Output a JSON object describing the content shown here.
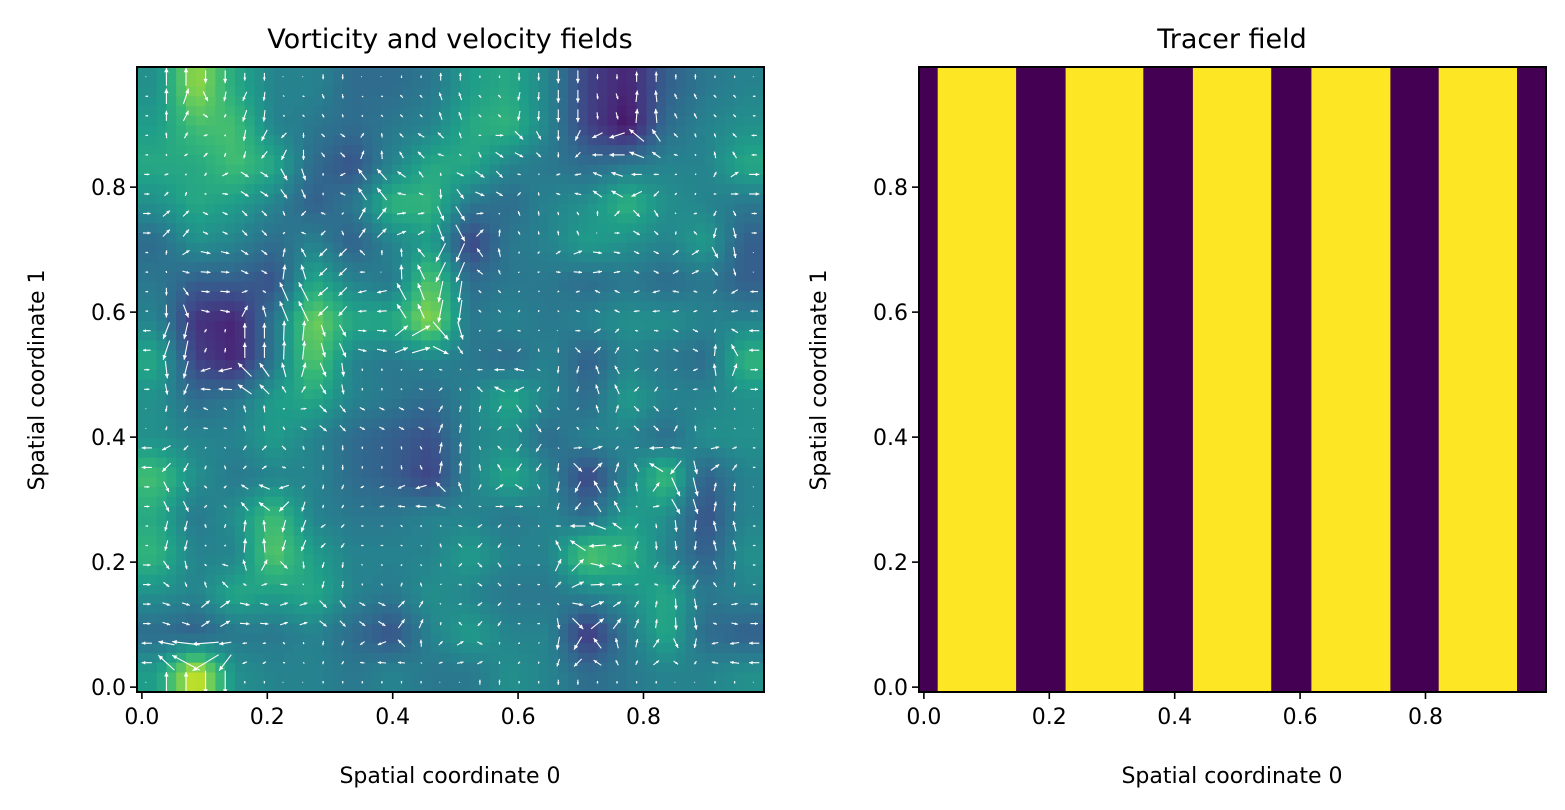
{
  "chart_data": [
    {
      "type": "heatmap",
      "title": "Vorticity and velocity fields",
      "xlabel": "Spatial coordinate 0",
      "ylabel": "Spatial coordinate 1",
      "xlim": [
        -0.0078,
        0.9922
      ],
      "ylim": [
        -0.0078,
        0.9922
      ],
      "xticks": [
        "0.0",
        "0.2",
        "0.4",
        "0.6",
        "0.8"
      ],
      "yticks": [
        "0.0",
        "0.2",
        "0.4",
        "0.6",
        "0.8"
      ],
      "colormap": "viridis",
      "overlay": "quiver",
      "overlay_color": "#ffffff",
      "grid_note_rows_top_to_bottom": true,
      "vorticity_grid": [
        [
          0.5,
          0.85,
          0.6,
          0.45,
          0.45,
          0.35,
          0.35,
          0.4,
          0.55,
          0.6,
          0.45,
          0.2,
          0.1,
          0.3,
          0.4,
          0.45
        ],
        [
          0.55,
          0.7,
          0.7,
          0.45,
          0.4,
          0.35,
          0.4,
          0.45,
          0.6,
          0.65,
          0.45,
          0.2,
          0.05,
          0.35,
          0.45,
          0.5
        ],
        [
          0.6,
          0.6,
          0.7,
          0.6,
          0.35,
          0.25,
          0.45,
          0.6,
          0.6,
          0.45,
          0.4,
          0.35,
          0.4,
          0.45,
          0.45,
          0.6
        ],
        [
          0.5,
          0.6,
          0.55,
          0.45,
          0.3,
          0.4,
          0.65,
          0.65,
          0.4,
          0.35,
          0.45,
          0.5,
          0.65,
          0.5,
          0.45,
          0.4
        ],
        [
          0.35,
          0.5,
          0.45,
          0.35,
          0.45,
          0.3,
          0.45,
          0.55,
          0.2,
          0.4,
          0.45,
          0.55,
          0.5,
          0.45,
          0.55,
          0.3
        ],
        [
          0.4,
          0.3,
          0.3,
          0.25,
          0.6,
          0.45,
          0.4,
          0.75,
          0.35,
          0.4,
          0.4,
          0.35,
          0.4,
          0.35,
          0.4,
          0.3
        ],
        [
          0.45,
          0.15,
          0.1,
          0.4,
          0.8,
          0.6,
          0.6,
          0.85,
          0.4,
          0.45,
          0.4,
          0.45,
          0.5,
          0.5,
          0.45,
          0.45
        ],
        [
          0.6,
          0.2,
          0.1,
          0.4,
          0.75,
          0.45,
          0.4,
          0.45,
          0.4,
          0.35,
          0.45,
          0.3,
          0.45,
          0.4,
          0.35,
          0.65
        ],
        [
          0.5,
          0.35,
          0.4,
          0.55,
          0.6,
          0.45,
          0.4,
          0.35,
          0.45,
          0.6,
          0.45,
          0.35,
          0.55,
          0.45,
          0.45,
          0.5
        ],
        [
          0.5,
          0.45,
          0.45,
          0.55,
          0.45,
          0.35,
          0.3,
          0.25,
          0.45,
          0.5,
          0.35,
          0.45,
          0.45,
          0.35,
          0.5,
          0.5
        ],
        [
          0.7,
          0.5,
          0.4,
          0.45,
          0.45,
          0.35,
          0.3,
          0.2,
          0.45,
          0.6,
          0.45,
          0.2,
          0.45,
          0.7,
          0.3,
          0.45
        ],
        [
          0.6,
          0.4,
          0.5,
          0.7,
          0.45,
          0.4,
          0.4,
          0.45,
          0.45,
          0.4,
          0.45,
          0.35,
          0.55,
          0.5,
          0.25,
          0.45
        ],
        [
          0.65,
          0.45,
          0.45,
          0.75,
          0.55,
          0.45,
          0.45,
          0.45,
          0.55,
          0.45,
          0.45,
          0.75,
          0.65,
          0.45,
          0.3,
          0.5
        ],
        [
          0.5,
          0.45,
          0.6,
          0.55,
          0.6,
          0.45,
          0.4,
          0.5,
          0.45,
          0.4,
          0.4,
          0.45,
          0.5,
          0.6,
          0.4,
          0.45
        ],
        [
          0.35,
          0.3,
          0.4,
          0.4,
          0.45,
          0.35,
          0.25,
          0.45,
          0.55,
          0.45,
          0.45,
          0.15,
          0.4,
          0.6,
          0.35,
          0.3
        ],
        [
          0.55,
          0.95,
          0.5,
          0.45,
          0.45,
          0.4,
          0.45,
          0.4,
          0.4,
          0.5,
          0.45,
          0.35,
          0.4,
          0.45,
          0.45,
          0.5
        ]
      ]
    },
    {
      "type": "heatmap",
      "title": "Tracer field",
      "xlabel": "Spatial coordinate 0",
      "ylabel": "Spatial coordinate 1",
      "xlim": [
        -0.0078,
        0.9922
      ],
      "ylim": [
        -0.0078,
        0.9922
      ],
      "xticks": [
        "0.0",
        "0.2",
        "0.4",
        "0.6",
        "0.8"
      ],
      "yticks": [
        "0.0",
        "0.2",
        "0.4",
        "0.6",
        "0.8"
      ],
      "colormap": "viridis",
      "low_color": "#440154",
      "high_color": "#fde725",
      "stripes": [
        {
          "x0": -0.0078,
          "x1": 0.022,
          "value": 0
        },
        {
          "x0": 0.022,
          "x1": 0.147,
          "value": 1
        },
        {
          "x0": 0.147,
          "x1": 0.226,
          "value": 0
        },
        {
          "x0": 0.226,
          "x1": 0.35,
          "value": 1
        },
        {
          "x0": 0.35,
          "x1": 0.429,
          "value": 0
        },
        {
          "x0": 0.429,
          "x1": 0.554,
          "value": 1
        },
        {
          "x0": 0.554,
          "x1": 0.618,
          "value": 0
        },
        {
          "x0": 0.618,
          "x1": 0.744,
          "value": 1
        },
        {
          "x0": 0.744,
          "x1": 0.821,
          "value": 0
        },
        {
          "x0": 0.821,
          "x1": 0.946,
          "value": 1
        },
        {
          "x0": 0.946,
          "x1": 0.9922,
          "value": 0
        }
      ]
    }
  ]
}
